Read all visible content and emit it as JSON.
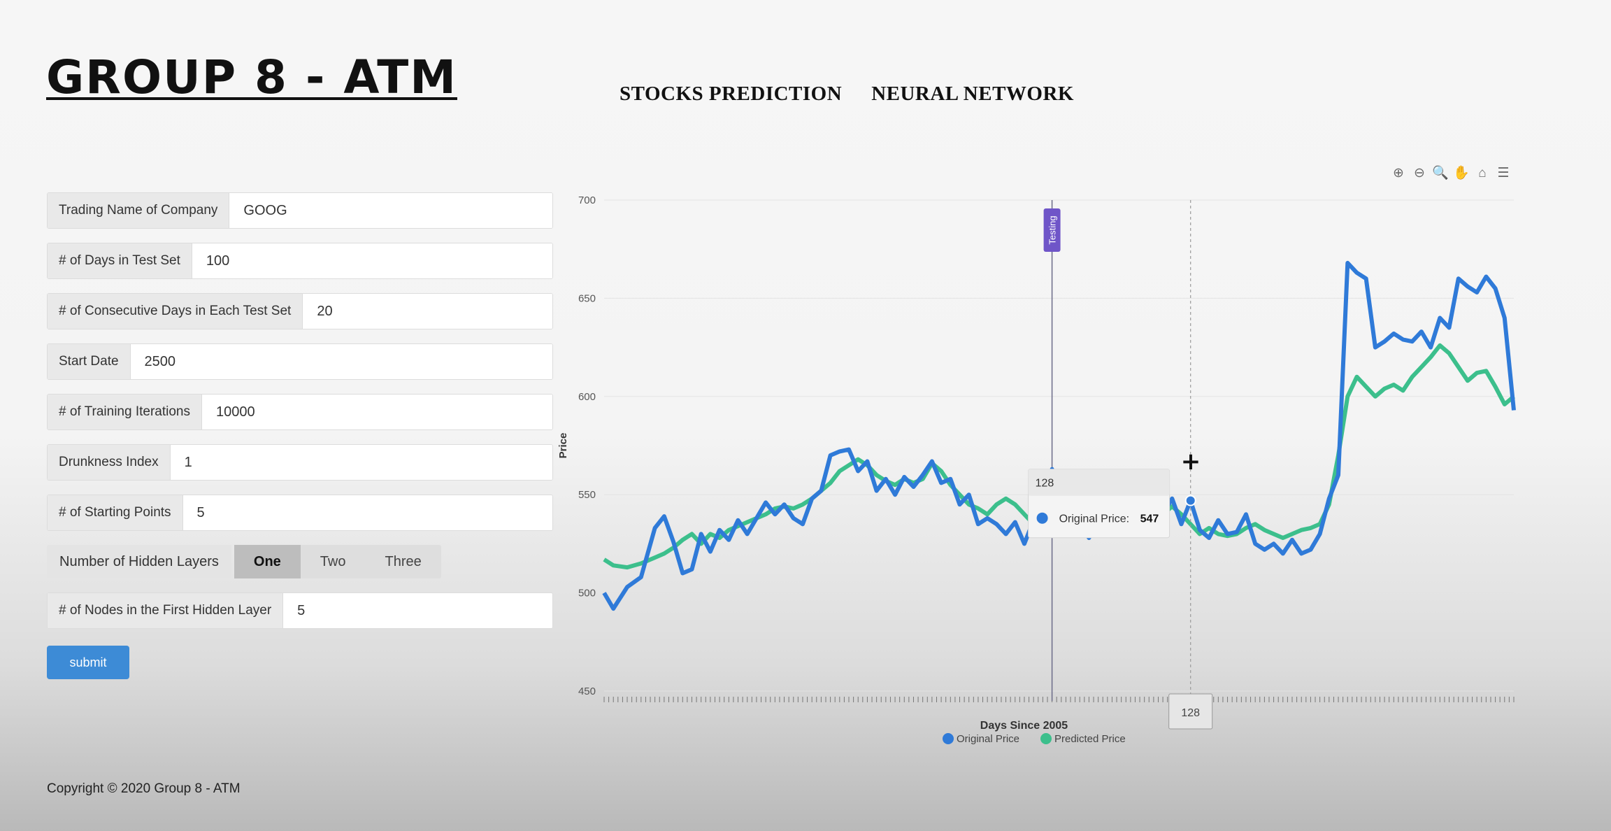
{
  "brand": "GROUP 8 - ATM",
  "nav": {
    "stocks": "STOCKS PREDICTION",
    "neural": "NEURAL NETWORK"
  },
  "form": {
    "company": {
      "label": "Trading Name of Company",
      "value": "GOOG"
    },
    "test_days": {
      "label": "# of Days in Test Set",
      "value": "100"
    },
    "consecutive": {
      "label": "# of Consecutive Days in Each Test Set",
      "value": "20"
    },
    "start_date": {
      "label": "Start Date",
      "value": "2500"
    },
    "iterations": {
      "label": "# of Training Iterations",
      "value": "10000"
    },
    "drunkness": {
      "label": "Drunkness Index",
      "value": "1"
    },
    "starting_points": {
      "label": "# of Starting Points",
      "value": "5"
    },
    "hidden_layers": {
      "label": "Number of Hidden Layers",
      "options": [
        "One",
        "Two",
        "Three"
      ],
      "selected": "One"
    },
    "nodes_first": {
      "label": "# of Nodes in the First Hidden Layer",
      "value": "5"
    },
    "submit": "submit"
  },
  "toolbar": {
    "icons": [
      "zoom-in-icon",
      "zoom-out-icon",
      "selection-zoom-icon",
      "pan-icon",
      "home-icon",
      "menu-icon"
    ],
    "glyphs": [
      "⊕",
      "⊖",
      "🔍",
      "✋",
      "⌂",
      "☰"
    ],
    "active": "selection-zoom-icon"
  },
  "footer": {
    "copyright": "Copyright © 2020 Group 8 - ATM"
  },
  "chart_data": {
    "type": "line",
    "xlabel": "Days Since 2005",
    "ylabel": "Price",
    "ylim": [
      450,
      700
    ],
    "yticks": [
      450,
      500,
      550,
      600,
      650,
      700
    ],
    "xlim": [
      1,
      198
    ],
    "grid": true,
    "legend_position": "bottom-center",
    "annotation": {
      "label": "Testing",
      "x": 98
    },
    "crosshair": {
      "x": 128,
      "label": "128"
    },
    "tooltip": {
      "title": "128",
      "series": "Original Price",
      "label": "Original Price:",
      "value": 547
    },
    "colors": {
      "original": "#2f7ad8",
      "predicted": "#3cbf8c",
      "annotation": "#6f55c8"
    },
    "series": [
      {
        "name": "Original Price",
        "color": "#2f7ad8",
        "points": [
          [
            1,
            500
          ],
          [
            3,
            492
          ],
          [
            6,
            503
          ],
          [
            9,
            508
          ],
          [
            12,
            533
          ],
          [
            14,
            539
          ],
          [
            16,
            526
          ],
          [
            18,
            510
          ],
          [
            20,
            512
          ],
          [
            22,
            530
          ],
          [
            24,
            521
          ],
          [
            26,
            532
          ],
          [
            28,
            527
          ],
          [
            30,
            537
          ],
          [
            32,
            530
          ],
          [
            34,
            538
          ],
          [
            36,
            546
          ],
          [
            38,
            540
          ],
          [
            40,
            545
          ],
          [
            42,
            538
          ],
          [
            44,
            535
          ],
          [
            46,
            548
          ],
          [
            48,
            552
          ],
          [
            50,
            570
          ],
          [
            52,
            572
          ],
          [
            54,
            573
          ],
          [
            56,
            562
          ],
          [
            58,
            567
          ],
          [
            60,
            552
          ],
          [
            62,
            558
          ],
          [
            64,
            550
          ],
          [
            66,
            559
          ],
          [
            68,
            554
          ],
          [
            70,
            560
          ],
          [
            72,
            567
          ],
          [
            74,
            556
          ],
          [
            76,
            558
          ],
          [
            78,
            545
          ],
          [
            80,
            550
          ],
          [
            82,
            535
          ],
          [
            84,
            538
          ],
          [
            86,
            535
          ],
          [
            88,
            530
          ],
          [
            90,
            536
          ],
          [
            92,
            525
          ],
          [
            94,
            537
          ],
          [
            96,
            543
          ],
          [
            98,
            563
          ],
          [
            100,
            547
          ],
          [
            102,
            550
          ],
          [
            104,
            535
          ],
          [
            106,
            528
          ],
          [
            108,
            536
          ],
          [
            110,
            534
          ],
          [
            112,
            538
          ],
          [
            114,
            530
          ],
          [
            116,
            540
          ],
          [
            118,
            537
          ],
          [
            120,
            530
          ],
          [
            122,
            540
          ],
          [
            124,
            548
          ],
          [
            126,
            535
          ],
          [
            128,
            547
          ],
          [
            130,
            532
          ],
          [
            132,
            528
          ],
          [
            134,
            537
          ],
          [
            136,
            530
          ],
          [
            138,
            531
          ],
          [
            140,
            540
          ],
          [
            142,
            525
          ],
          [
            144,
            522
          ],
          [
            146,
            525
          ],
          [
            148,
            520
          ],
          [
            150,
            527
          ],
          [
            152,
            520
          ],
          [
            154,
            522
          ],
          [
            156,
            530
          ],
          [
            158,
            548
          ],
          [
            160,
            560
          ],
          [
            162,
            668
          ],
          [
            164,
            663
          ],
          [
            166,
            660
          ],
          [
            168,
            625
          ],
          [
            170,
            628
          ],
          [
            172,
            632
          ],
          [
            174,
            629
          ],
          [
            176,
            628
          ],
          [
            178,
            633
          ],
          [
            180,
            625
          ],
          [
            182,
            640
          ],
          [
            184,
            635
          ],
          [
            186,
            660
          ],
          [
            188,
            656
          ],
          [
            190,
            653
          ],
          [
            192,
            661
          ],
          [
            194,
            655
          ],
          [
            196,
            640
          ],
          [
            198,
            593
          ]
        ],
        "note": "original price series after crosshair continues further"
      },
      {
        "name": "Predicted Price",
        "color": "#3cbf8c",
        "points": [
          [
            1,
            517
          ],
          [
            3,
            514
          ],
          [
            6,
            513
          ],
          [
            9,
            515
          ],
          [
            12,
            518
          ],
          [
            14,
            520
          ],
          [
            16,
            523
          ],
          [
            18,
            527
          ],
          [
            20,
            530
          ],
          [
            22,
            525
          ],
          [
            24,
            530
          ],
          [
            26,
            528
          ],
          [
            28,
            532
          ],
          [
            30,
            534
          ],
          [
            32,
            536
          ],
          [
            34,
            538
          ],
          [
            36,
            540
          ],
          [
            38,
            543
          ],
          [
            40,
            544
          ],
          [
            42,
            543
          ],
          [
            44,
            545
          ],
          [
            46,
            548
          ],
          [
            48,
            552
          ],
          [
            50,
            556
          ],
          [
            52,
            562
          ],
          [
            54,
            565
          ],
          [
            56,
            568
          ],
          [
            58,
            565
          ],
          [
            60,
            560
          ],
          [
            62,
            557
          ],
          [
            64,
            555
          ],
          [
            66,
            558
          ],
          [
            68,
            556
          ],
          [
            70,
            558
          ],
          [
            72,
            566
          ],
          [
            74,
            562
          ],
          [
            76,
            555
          ],
          [
            78,
            550
          ],
          [
            80,
            545
          ],
          [
            82,
            543
          ],
          [
            84,
            540
          ],
          [
            86,
            545
          ],
          [
            88,
            548
          ],
          [
            90,
            545
          ],
          [
            92,
            540
          ],
          [
            94,
            535
          ],
          [
            96,
            537
          ],
          [
            98,
            540
          ],
          [
            100,
            545
          ],
          [
            102,
            540
          ],
          [
            104,
            543
          ],
          [
            106,
            548
          ],
          [
            108,
            545
          ],
          [
            110,
            540
          ],
          [
            112,
            537
          ],
          [
            114,
            535
          ],
          [
            116,
            540
          ],
          [
            118,
            542
          ],
          [
            120,
            538
          ],
          [
            122,
            540
          ],
          [
            124,
            544
          ],
          [
            126,
            540
          ],
          [
            128,
            535
          ],
          [
            130,
            530
          ],
          [
            132,
            533
          ],
          [
            134,
            530
          ],
          [
            136,
            529
          ],
          [
            138,
            530
          ],
          [
            140,
            533
          ],
          [
            142,
            535
          ],
          [
            144,
            532
          ],
          [
            146,
            530
          ],
          [
            148,
            528
          ],
          [
            150,
            530
          ],
          [
            152,
            532
          ],
          [
            154,
            533
          ],
          [
            156,
            535
          ],
          [
            158,
            545
          ],
          [
            160,
            570
          ],
          [
            162,
            600
          ],
          [
            164,
            610
          ],
          [
            166,
            605
          ],
          [
            168,
            600
          ],
          [
            170,
            604
          ],
          [
            172,
            606
          ],
          [
            174,
            603
          ],
          [
            176,
            610
          ],
          [
            178,
            615
          ],
          [
            180,
            620
          ],
          [
            182,
            626
          ],
          [
            184,
            622
          ],
          [
            186,
            615
          ],
          [
            188,
            608
          ],
          [
            190,
            612
          ],
          [
            192,
            613
          ],
          [
            194,
            605
          ],
          [
            196,
            596
          ],
          [
            198,
            600
          ]
        ]
      }
    ]
  }
}
